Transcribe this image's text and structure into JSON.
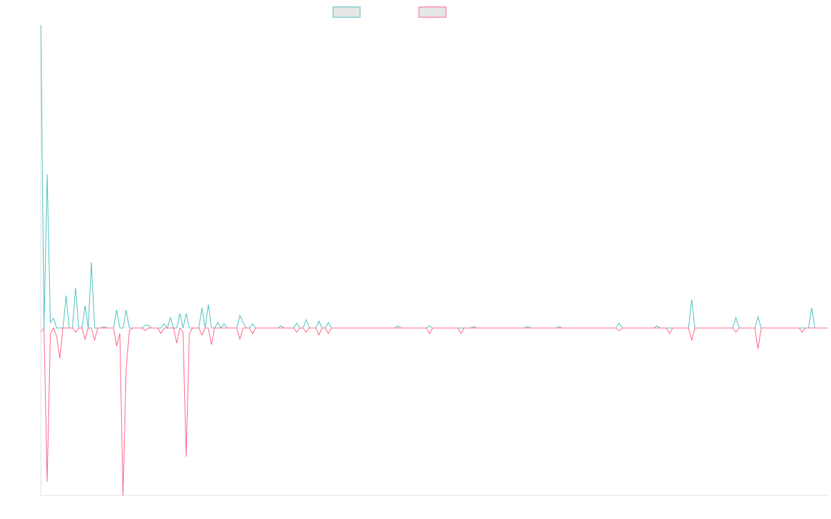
{
  "chart_data": {
    "type": "line",
    "ylim": [
      -242,
      438
    ],
    "series": [
      {
        "color": "#4bc0c0",
        "values": [
          438,
          0,
          222,
          8,
          14,
          0,
          0,
          0,
          47,
          0,
          0,
          58,
          0,
          0,
          32,
          0,
          95,
          0,
          0,
          0,
          2,
          0,
          0,
          0,
          26,
          0,
          0,
          26,
          0,
          0,
          0,
          0,
          0,
          4,
          4,
          0,
          0,
          0,
          0,
          6,
          0,
          15,
          0,
          0,
          21,
          0,
          21,
          0,
          0,
          0,
          0,
          29,
          0,
          34,
          0,
          0,
          8,
          0,
          6,
          0,
          0,
          0,
          0,
          18,
          8,
          0,
          0,
          6,
          0,
          0,
          0,
          0,
          0,
          0,
          0,
          0,
          3,
          0,
          0,
          0,
          0,
          7,
          0,
          0,
          12,
          0,
          0,
          0,
          10,
          0,
          0,
          8,
          0,
          0,
          0,
          0,
          0,
          0,
          0,
          0,
          0,
          0,
          0,
          0,
          0,
          0,
          0,
          0,
          0,
          0,
          0,
          0,
          0,
          3,
          0,
          0,
          0,
          0,
          0,
          0,
          0,
          0,
          0,
          3,
          0,
          0,
          0,
          0,
          0,
          0,
          0,
          0,
          0,
          0,
          0,
          0,
          0,
          2,
          0,
          0,
          0,
          0,
          0,
          0,
          0,
          0,
          0,
          0,
          0,
          0,
          0,
          0,
          0,
          0,
          2,
          0,
          0,
          0,
          0,
          0,
          0,
          0,
          0,
          0,
          2,
          0,
          0,
          0,
          0,
          0,
          0,
          0,
          0,
          0,
          0,
          0,
          0,
          0,
          0,
          0,
          0,
          0,
          0,
          7,
          0,
          0,
          0,
          0,
          0,
          0,
          0,
          0,
          0,
          0,
          0,
          3,
          0,
          0,
          0,
          0,
          0,
          0,
          0,
          0,
          0,
          0,
          41,
          0,
          0,
          0,
          0,
          0,
          0,
          0,
          0,
          0,
          0,
          0,
          0,
          0,
          15,
          0,
          0,
          0,
          0,
          0,
          0,
          16,
          0,
          0,
          0,
          0,
          0,
          0,
          0,
          0,
          0,
          0,
          0,
          0,
          0,
          0,
          0,
          0,
          29,
          0,
          0,
          0,
          0,
          0
        ]
      },
      {
        "color": "#ff6384",
        "values": [
          -6,
          0,
          -222,
          -8,
          0,
          -12,
          -44,
          0,
          0,
          0,
          0,
          -6,
          0,
          0,
          -16,
          0,
          0,
          -18,
          0,
          0,
          0,
          0,
          0,
          0,
          -26,
          -8,
          -242,
          -60,
          -4,
          0,
          0,
          0,
          0,
          -4,
          0,
          0,
          0,
          0,
          -8,
          0,
          0,
          0,
          0,
          -22,
          0,
          -6,
          -186,
          -8,
          0,
          0,
          0,
          -10,
          0,
          0,
          -24,
          0,
          0,
          0,
          0,
          0,
          0,
          0,
          0,
          -16,
          0,
          0,
          0,
          -8,
          0,
          0,
          0,
          0,
          0,
          0,
          0,
          0,
          0,
          0,
          0,
          0,
          0,
          -6,
          0,
          0,
          -6,
          0,
          0,
          0,
          -10,
          0,
          0,
          -8,
          0,
          0,
          0,
          0,
          0,
          0,
          0,
          0,
          0,
          0,
          0,
          0,
          0,
          0,
          0,
          0,
          0,
          0,
          0,
          0,
          0,
          0,
          0,
          0,
          0,
          0,
          0,
          0,
          0,
          0,
          0,
          -8,
          0,
          0,
          0,
          0,
          0,
          0,
          0,
          0,
          0,
          -8,
          0,
          0,
          0,
          0,
          0,
          0,
          0,
          0,
          0,
          0,
          0,
          0,
          0,
          0,
          0,
          0,
          0,
          0,
          0,
          0,
          0,
          0,
          0,
          0,
          0,
          0,
          0,
          0,
          0,
          0,
          0,
          0,
          0,
          0,
          0,
          0,
          0,
          0,
          0,
          0,
          0,
          0,
          0,
          0,
          0,
          0,
          0,
          0,
          0,
          -4,
          0,
          0,
          0,
          0,
          0,
          0,
          0,
          0,
          0,
          0,
          0,
          0,
          0,
          0,
          0,
          -8,
          0,
          0,
          0,
          0,
          0,
          0,
          -18,
          0,
          0,
          0,
          0,
          0,
          0,
          0,
          0,
          0,
          0,
          0,
          0,
          0,
          -6,
          0,
          0,
          0,
          0,
          0,
          0,
          -30,
          0,
          0,
          0,
          0,
          0,
          0,
          0,
          0,
          0,
          0,
          0,
          0,
          0,
          -6,
          0,
          0,
          0,
          0,
          0,
          0,
          0,
          0
        ]
      }
    ]
  }
}
